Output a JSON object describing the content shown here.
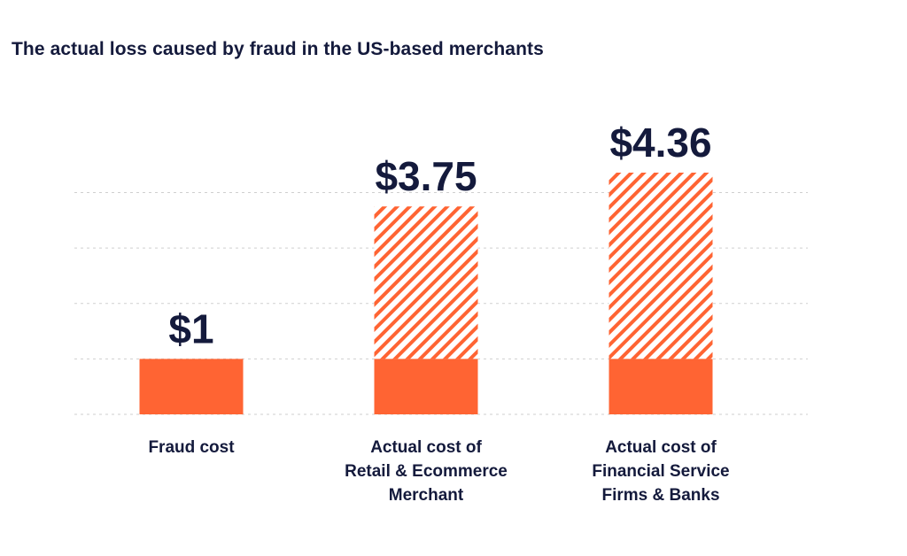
{
  "chart_data": {
    "type": "bar",
    "title": "The actual loss caused by fraud in the US-based merchants",
    "xlabel": "",
    "ylabel": "",
    "categories": [
      [
        "Fraud cost"
      ],
      [
        "Actual cost of",
        "Retail & Ecommerce",
        "Merchant"
      ],
      [
        "Actual cost of",
        "Financial Service",
        "Firms & Banks"
      ]
    ],
    "values": [
      1,
      3.75,
      4.36
    ],
    "value_labels": [
      "$1",
      "$3.75",
      "$4.36"
    ],
    "base_value": 1,
    "ylim": [
      0,
      4.36
    ],
    "grid": true,
    "colors": {
      "solid": "#ff6433",
      "hatch": "#ff6433",
      "text": "#141a3c",
      "grid": "#cfcfcf"
    }
  }
}
